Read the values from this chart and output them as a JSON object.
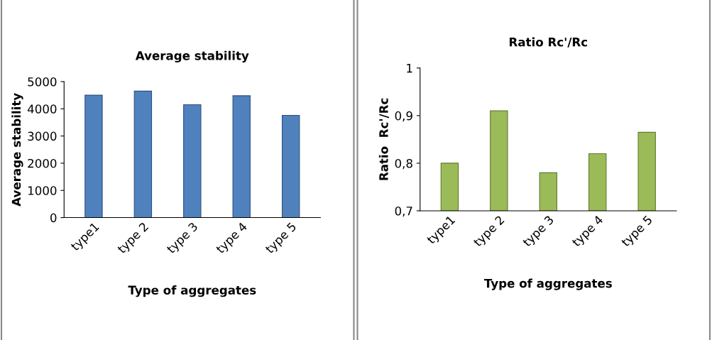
{
  "chart_data": [
    {
      "type": "bar",
      "title": "Average stability",
      "xlabel": "Type of aggregates",
      "ylabel": "Average stability",
      "categories": [
        "type1",
        "type 2",
        "type 3",
        "type 4",
        "type 5"
      ],
      "values": [
        4500,
        4650,
        4150,
        4480,
        3760
      ],
      "color": "#4f81bd",
      "ylim": [
        0,
        5000
      ],
      "yticks": [
        0,
        1000,
        2000,
        3000,
        4000,
        5000
      ],
      "grid": false,
      "legend": false
    },
    {
      "type": "bar",
      "title": "Ratio Rc'/Rc",
      "xlabel": "Type of aggregates",
      "ylabel": "Ratio  Rc'/Rc",
      "categories": [
        "type1",
        "type 2",
        "type 3",
        "type 4",
        "type 5"
      ],
      "values": [
        0.8,
        0.91,
        0.78,
        0.82,
        0.865
      ],
      "color": "#9bbb59",
      "ylim": [
        0.7,
        1
      ],
      "yticks": [
        {
          "value": 0.7,
          "label": "0,7"
        },
        {
          "value": 0.8,
          "label": "0,8"
        },
        {
          "value": 0.9,
          "label": "0,9"
        },
        {
          "value": 1,
          "label": "1"
        }
      ],
      "grid": false,
      "legend": false
    }
  ]
}
